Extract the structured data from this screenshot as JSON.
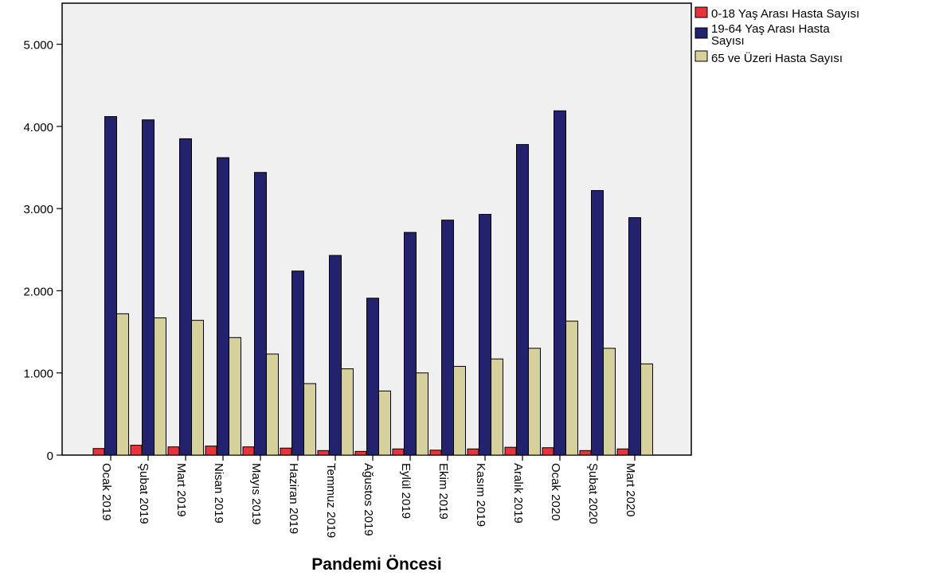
{
  "chart_data": {
    "type": "bar",
    "title": "",
    "xlabel": "Pandemi Öncesi",
    "ylabel": "",
    "ylim": [
      0,
      5500
    ],
    "yticks": [
      0,
      1000,
      2000,
      3000,
      4000,
      5000
    ],
    "ytick_labels": [
      "0",
      "1.000",
      "2.000",
      "3.000",
      "4.000",
      "5.000"
    ],
    "grid": false,
    "legend_position": "top-right outside",
    "plot_background": "#f0f0f0",
    "categories": [
      "Ocak 2019",
      "Şubat 2019",
      "Mart 2019",
      "Nisan 2019",
      "Mayıs 2019",
      "Haziran 2019",
      "Temmuz 2019",
      "Ağustos 2019",
      "Eylül 2019",
      "Ekim 2019",
      "Kasım 2019",
      "Aralık 2019",
      "Ocak 2020",
      "Şubat 2020",
      "Mart 2020"
    ],
    "series": [
      {
        "name": "0-18 Yaş Arası Hasta Sayısı",
        "color": "#e8333b",
        "values": [
          80,
          120,
          100,
          110,
          100,
          85,
          55,
          45,
          75,
          60,
          75,
          95,
          90,
          55,
          75
        ]
      },
      {
        "name": "19-64 Yaş Arası Hasta Sayısı",
        "color": "#22226e",
        "values": [
          4120,
          4080,
          3850,
          3620,
          3440,
          2240,
          2430,
          1910,
          2710,
          2860,
          2930,
          3780,
          4190,
          3220,
          2890
        ]
      },
      {
        "name": "65 ve Üzeri Hasta Sayısı",
        "color": "#d6d09a",
        "values": [
          1720,
          1670,
          1640,
          1430,
          1230,
          870,
          1050,
          780,
          1000,
          1080,
          1170,
          1300,
          1630,
          1300,
          1110
        ]
      }
    ]
  }
}
